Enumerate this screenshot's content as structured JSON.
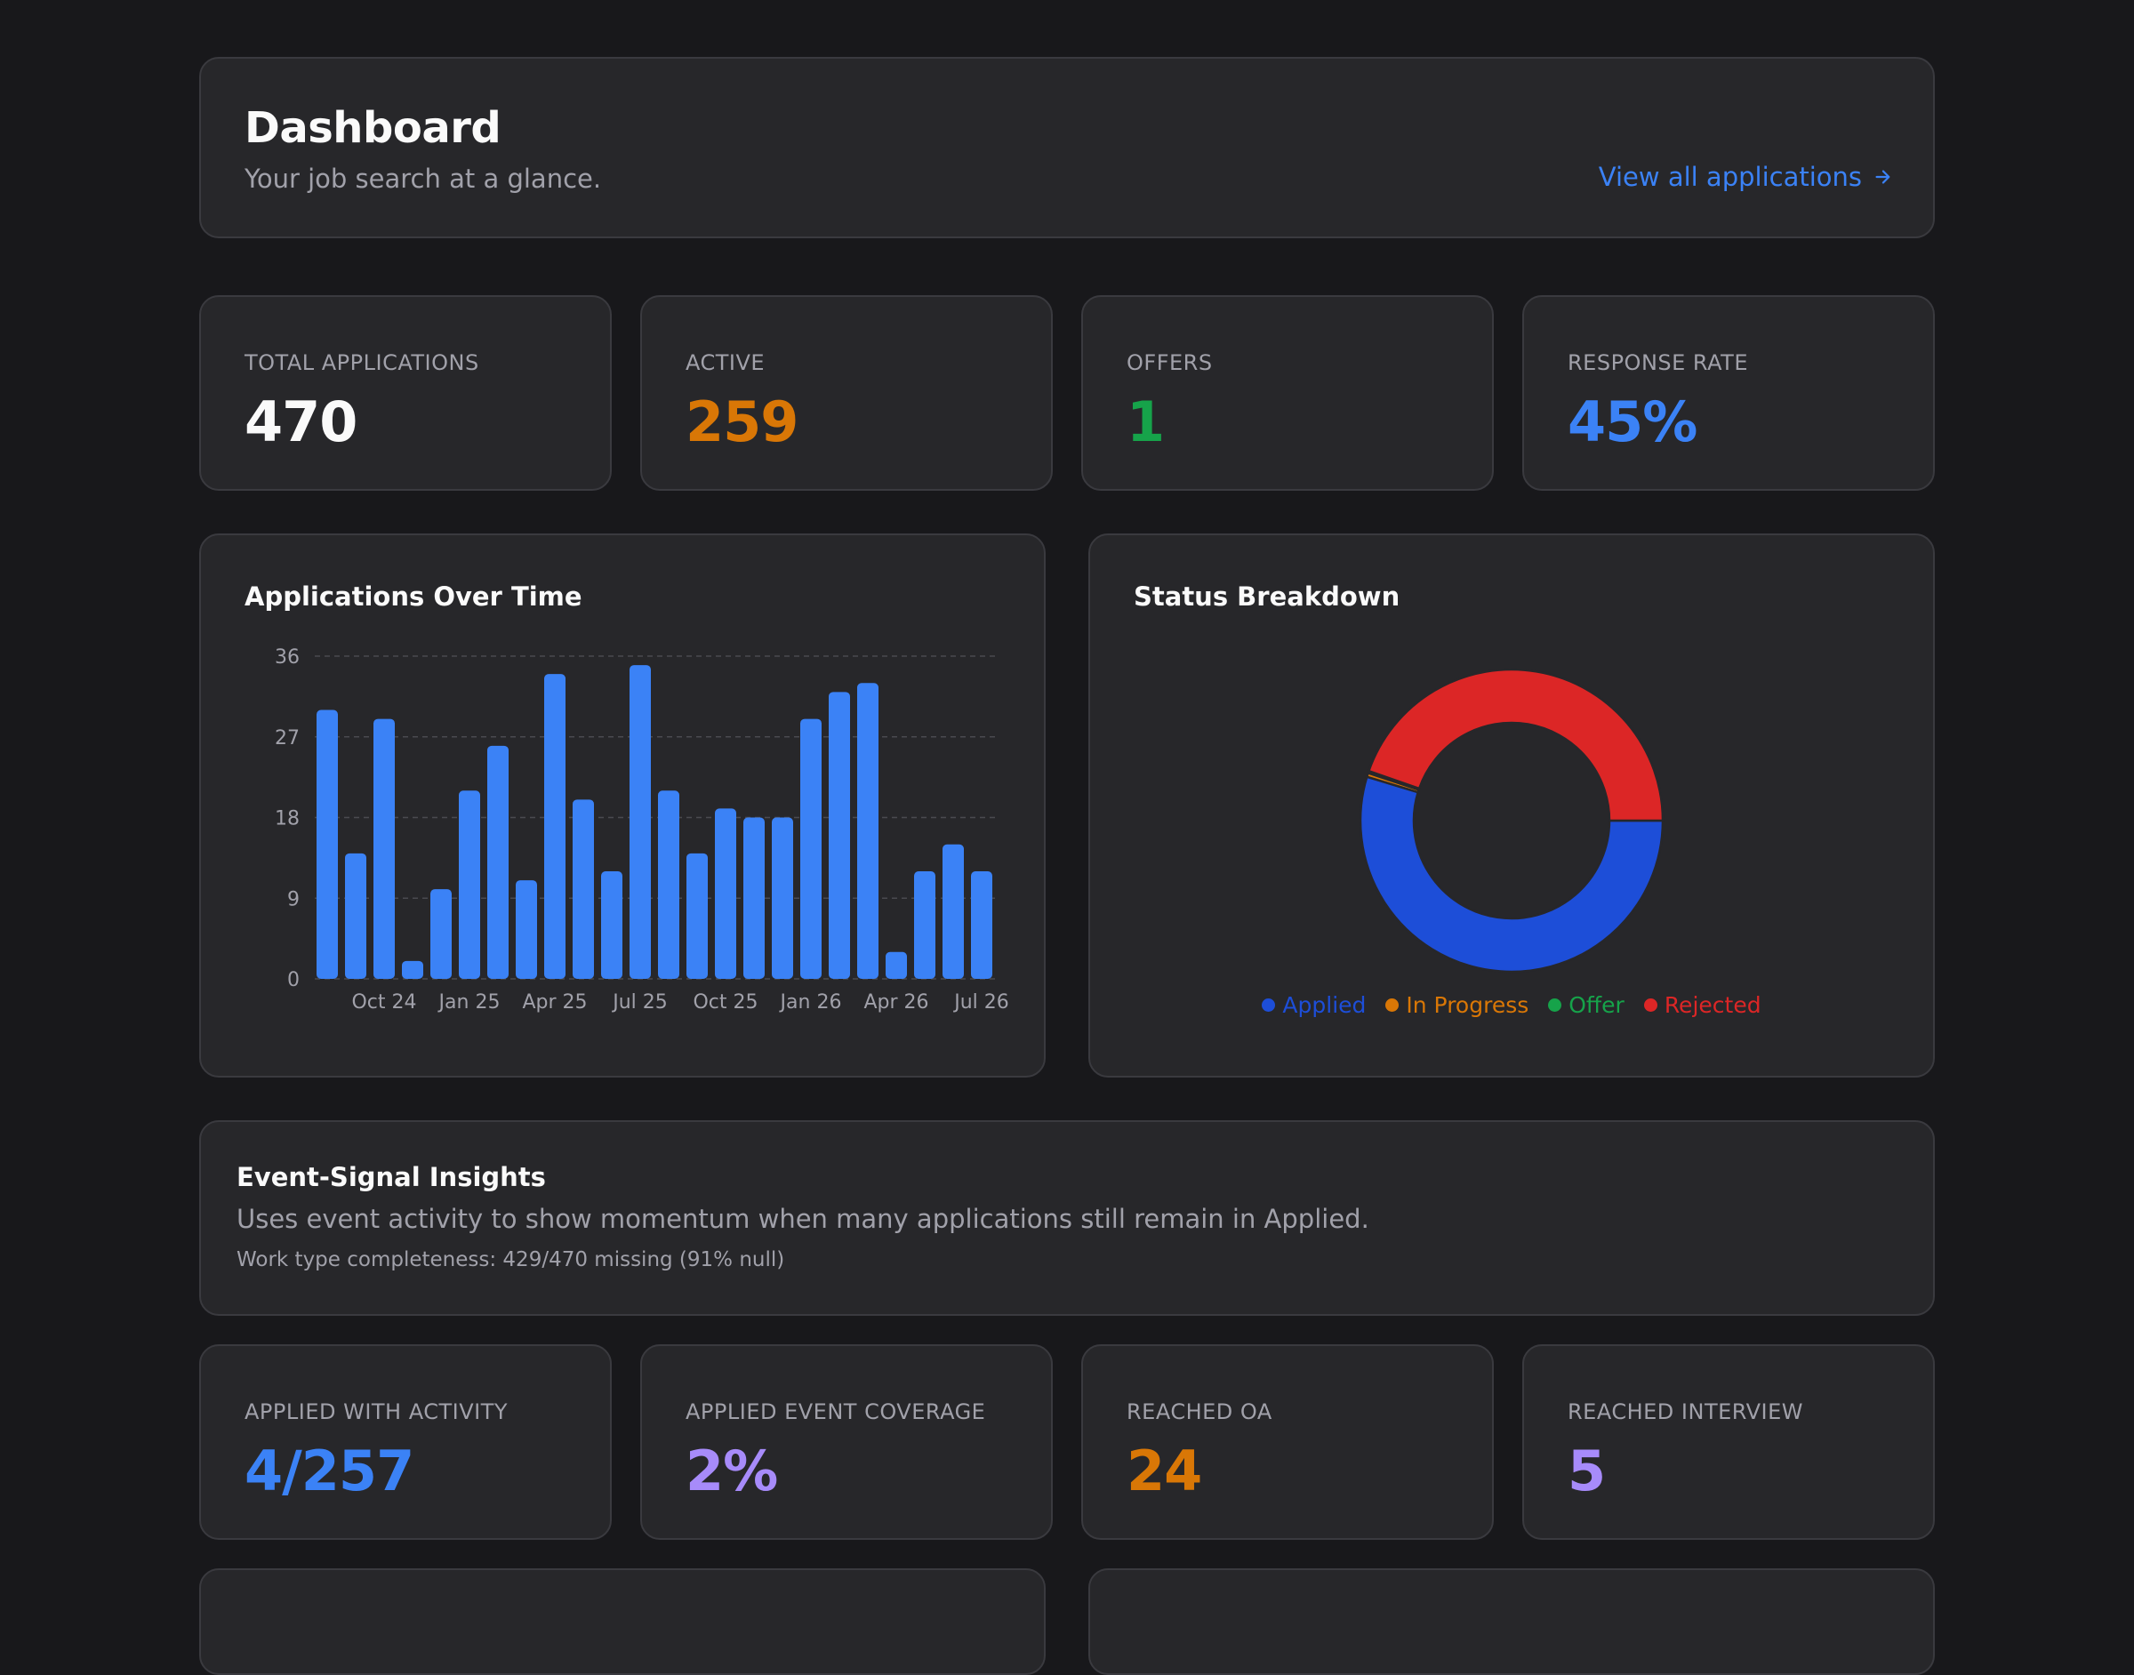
{
  "header": {
    "title": "Dashboard",
    "subtitle": "Your job search at a glance.",
    "view_all_label": "View all applications",
    "view_all_icon": "arrow-right-icon"
  },
  "stats": [
    {
      "label": "TOTAL APPLICATIONS",
      "value": "470",
      "color": "#fafafa"
    },
    {
      "label": "ACTIVE",
      "value": "259",
      "color": "#d97706"
    },
    {
      "label": "OFFERS",
      "value": "1",
      "color": "#16a34a"
    },
    {
      "label": "RESPONSE RATE",
      "value": "45%",
      "color": "#3b82f6"
    }
  ],
  "bar_chart": {
    "title": "Applications Over Time"
  },
  "donut_chart": {
    "title": "Status Breakdown"
  },
  "chart_data": [
    {
      "type": "bar",
      "title": "Applications Over Time",
      "y_ticks": [
        0,
        9,
        18,
        27,
        36
      ],
      "ylim": [
        0,
        36
      ],
      "x_tick_labels": [
        "Oct 24",
        "Jan 25",
        "Apr 25",
        "Jul 25",
        "Oct 25",
        "Jan 26",
        "Apr 26",
        "Jul 26"
      ],
      "grid": true,
      "color": "#3b82f6",
      "values": [
        30,
        14,
        29,
        2,
        10,
        21,
        26,
        11,
        34,
        20,
        12,
        35,
        21,
        14,
        19,
        18,
        18,
        29,
        32,
        33,
        3,
        12,
        15,
        12
      ]
    },
    {
      "type": "pie",
      "title": "Status Breakdown",
      "donut": true,
      "legend_position": "bottom",
      "slices": [
        {
          "name": "Applied",
          "value": 257,
          "color": "#1d4ed8"
        },
        {
          "name": "In Progress",
          "value": 2,
          "color": "#d97706"
        },
        {
          "name": "Offer",
          "value": 1,
          "color": "#16a34a"
        },
        {
          "name": "Rejected",
          "value": 210,
          "color": "#dc2626"
        }
      ]
    }
  ],
  "legend": [
    {
      "label": "Applied",
      "color": "#1d4ed8"
    },
    {
      "label": "In Progress",
      "color": "#d97706"
    },
    {
      "label": "Offer",
      "color": "#16a34a"
    },
    {
      "label": "Rejected",
      "color": "#dc2626"
    }
  ],
  "insights": {
    "title": "Event-Signal Insights",
    "description": "Uses event activity to show momentum when many applications still remain in Applied.",
    "meta": "Work type completeness: 429/470 missing (91% null)"
  },
  "event_stats": [
    {
      "label": "APPLIED WITH ACTIVITY",
      "value": "4/257",
      "color": "#3b82f6"
    },
    {
      "label": "APPLIED EVENT COVERAGE",
      "value": "2%",
      "color": "#a78bfa"
    },
    {
      "label": "REACHED OA",
      "value": "24",
      "color": "#d97706"
    },
    {
      "label": "REACHED INTERVIEW",
      "value": "5",
      "color": "#a78bfa"
    }
  ]
}
